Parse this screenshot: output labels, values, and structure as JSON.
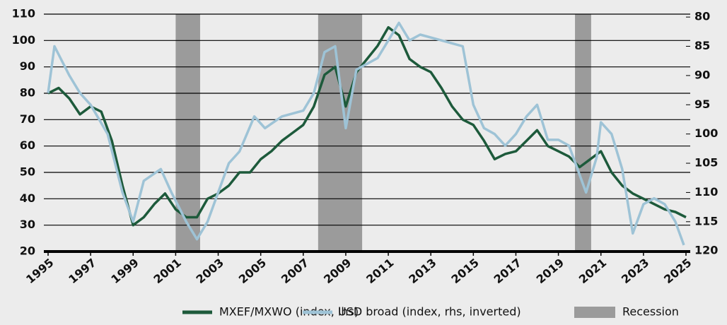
{
  "chart_data": {
    "type": "line",
    "xlim": [
      1995,
      2025
    ],
    "xticks": [
      1995,
      1997,
      1999,
      2001,
      2003,
      2005,
      2007,
      2009,
      2011,
      2013,
      2015,
      2017,
      2019,
      2021,
      2023,
      2025
    ],
    "ylim": [
      20,
      110
    ],
    "yticks": [
      20,
      30,
      40,
      50,
      60,
      70,
      80,
      90,
      100,
      110
    ],
    "y2lim": [
      120.1,
      79.5
    ],
    "y2ticks": [
      80,
      85,
      90,
      95,
      100,
      105,
      110,
      115,
      120
    ],
    "grid": true,
    "legend": "bottom",
    "recession_name": "Recession",
    "recession_color": "#9b9b9b",
    "recessions": [
      [
        2001.0,
        2002.15
      ],
      [
        2007.7,
        2009.77
      ],
      [
        2019.78,
        2020.54
      ]
    ],
    "series": [
      {
        "name": "MXEF/MXWO (index, lhs)",
        "color": "#1d5a3b",
        "x": [
          1995.0,
          1995.5,
          1996.0,
          1996.5,
          1997.0,
          1997.5,
          1998.0,
          1998.5,
          1999.0,
          1999.5,
          2000.0,
          2000.5,
          2001.0,
          2001.5,
          2002.0,
          2002.5,
          2003.0,
          2003.5,
          2004.0,
          2004.5,
          2005.0,
          2005.5,
          2006.0,
          2006.5,
          2007.0,
          2007.5,
          2008.0,
          2008.5,
          2009.0,
          2009.5,
          2010.0,
          2010.5,
          2011.0,
          2011.5,
          2012.0,
          2012.5,
          2013.0,
          2013.5,
          2014.0,
          2014.5,
          2015.0,
          2015.5,
          2016.0,
          2016.5,
          2017.0,
          2017.5,
          2018.0,
          2018.5,
          2019.0,
          2019.5,
          2020.0,
          2020.5,
          2021.0,
          2021.5,
          2022.0,
          2022.5,
          2023.0,
          2023.5,
          2024.0,
          2024.5,
          2025.0
        ],
        "values": [
          80,
          82,
          78,
          72,
          75,
          73,
          62,
          45,
          30,
          33,
          38,
          42,
          36,
          33,
          33,
          40,
          42,
          45,
          50,
          50,
          55,
          58,
          62,
          65,
          68,
          75,
          87,
          90,
          75,
          88,
          93,
          98,
          105,
          102,
          93,
          90,
          88,
          82,
          75,
          70,
          68,
          62,
          55,
          57,
          58,
          62,
          66,
          60,
          58,
          56,
          52,
          55,
          58,
          50,
          45,
          42,
          40,
          38,
          36,
          35,
          33
        ],
        "axis": "y"
      },
      {
        "name": "USD broad (index, rhs, inverted)",
        "color": "#9ec3d6",
        "x": [
          1995.0,
          1995.3,
          1996.0,
          1996.5,
          1997.0,
          1997.8,
          1998.5,
          1999.0,
          1999.5,
          2000.3,
          2000.8,
          2001.5,
          2002.0,
          2002.5,
          2003.0,
          2003.5,
          2004.0,
          2004.7,
          2005.2,
          2006.0,
          2007.0,
          2007.5,
          2008.0,
          2008.5,
          2009.0,
          2009.5,
          2010.5,
          2011.0,
          2011.5,
          2012.0,
          2012.5,
          2013.5,
          2014.5,
          2015.0,
          2015.5,
          2016.0,
          2016.5,
          2017.0,
          2017.5,
          2018.0,
          2018.5,
          2019.0,
          2019.5,
          2020.3,
          2020.8,
          2021.0,
          2021.5,
          2022.0,
          2022.5,
          2023.0,
          2023.5,
          2024.0,
          2024.5,
          2024.9
        ],
        "values": [
          93,
          85,
          90,
          93,
          95,
          100,
          110,
          115,
          108,
          106,
          110,
          115,
          118,
          115,
          110,
          105,
          103,
          97,
          99,
          97,
          96,
          93,
          86,
          85,
          99,
          89,
          87,
          84,
          81,
          84,
          83,
          84,
          85,
          95,
          99,
          100,
          102,
          100,
          97,
          95,
          101,
          101,
          102,
          110,
          104,
          98,
          100,
          106,
          117,
          112,
          111,
          112,
          115,
          119
        ],
        "axis": "y2"
      }
    ]
  }
}
